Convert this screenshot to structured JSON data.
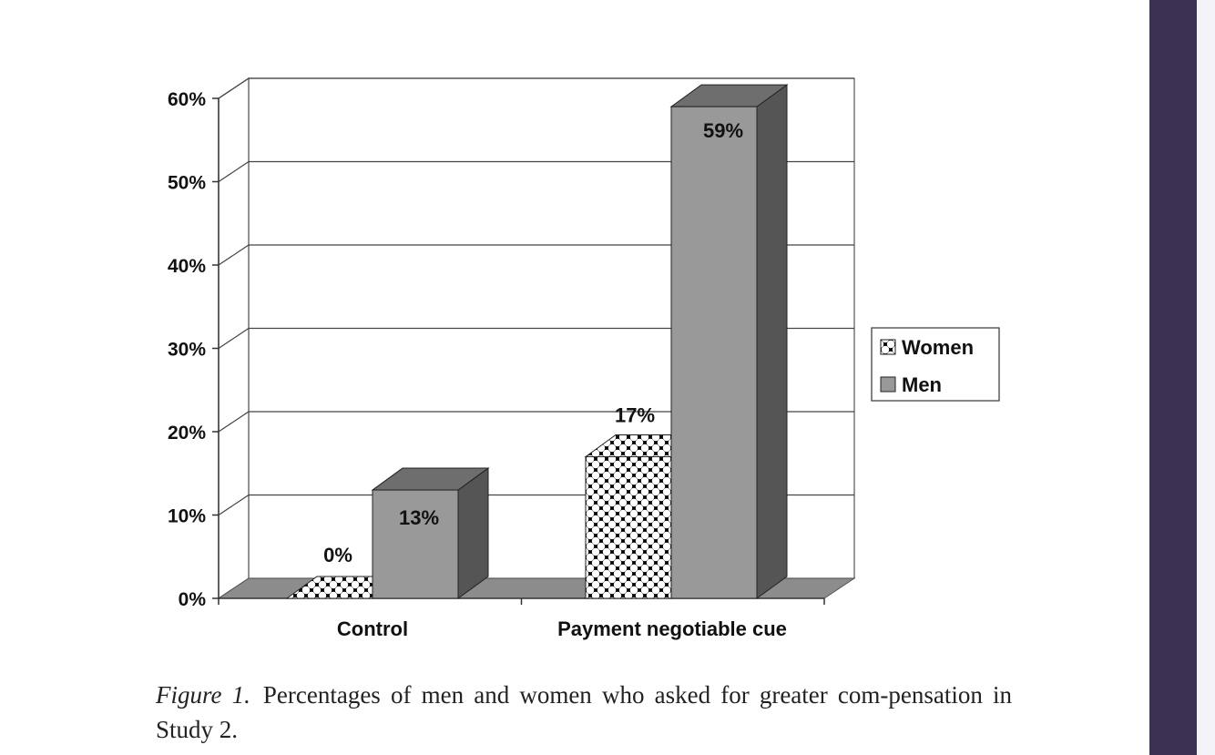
{
  "chart_data": {
    "type": "bar",
    "categories": [
      "Control",
      "Payment negotiable cue"
    ],
    "series": [
      {
        "name": "Women",
        "values": [
          0,
          17
        ],
        "labels": [
          "0%",
          "17%"
        ],
        "fill": "checker"
      },
      {
        "name": "Men",
        "values": [
          13,
          59
        ],
        "labels": [
          "13%",
          "59%"
        ],
        "fill": "#999999"
      }
    ],
    "y_ticks": [
      "0%",
      "10%",
      "20%",
      "30%",
      "40%",
      "50%",
      "60%"
    ],
    "ylim": [
      0,
      60
    ],
    "grid": true,
    "legend_position": "right",
    "style": "3d-column",
    "colors": {
      "men_front": "#999999",
      "men_top": "#6e6e6e",
      "men_side": "#555555",
      "floor": "#8c8c8c",
      "checker_dark": "#000000",
      "checker_light": "#ffffff"
    }
  },
  "caption": {
    "figure_label": "Figure 1.",
    "text": "Percentages of men and women who asked for greater com-pensation in Study 2."
  },
  "colors": {
    "sidebar": "#3b3152"
  }
}
